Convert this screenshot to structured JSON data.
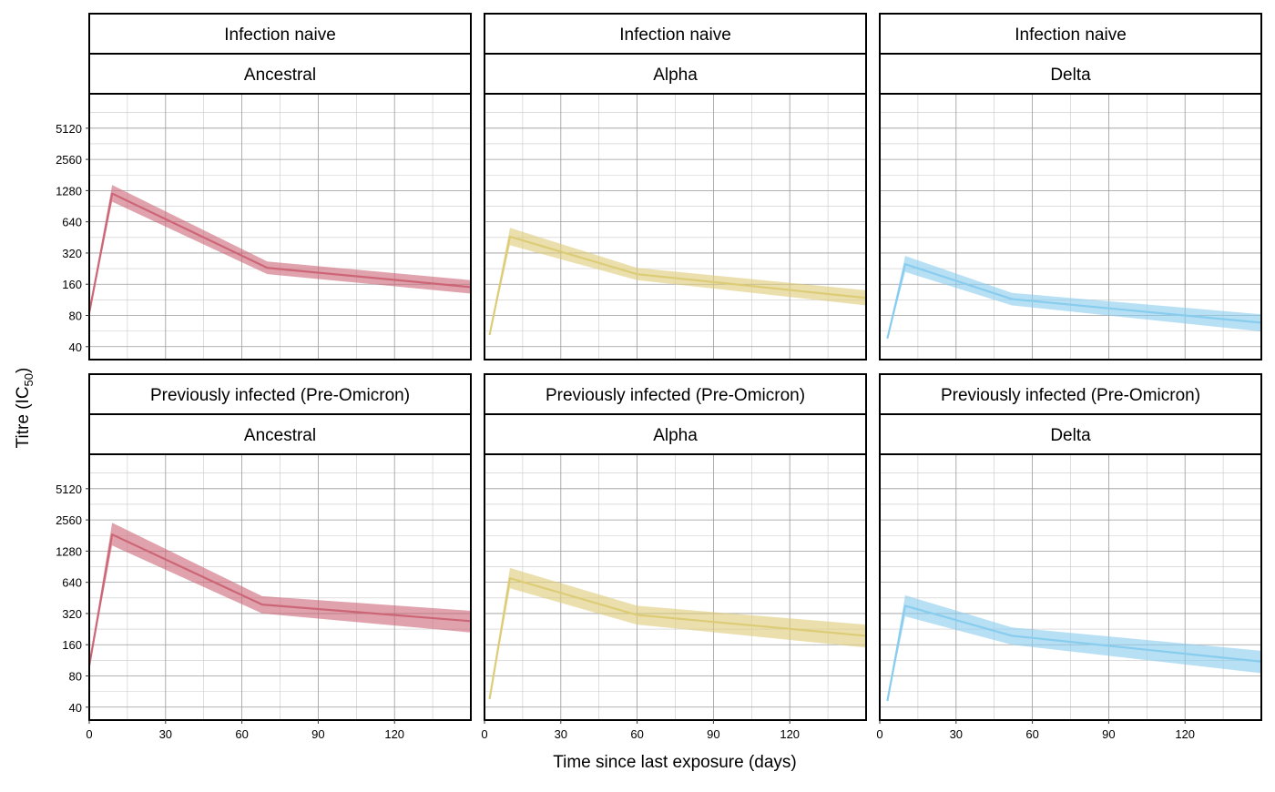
{
  "figure": {
    "xlabel": "Time since last exposure (days)",
    "ylabel_main": "Titre (IC",
    "ylabel_sub": "50",
    "ylabel_close": ")"
  },
  "chart_data": {
    "type": "line",
    "facet_grid": true,
    "rows": [
      "Infection naive",
      "Previously infected (Pre-Omicron)"
    ],
    "columns": [
      "Ancestral",
      "Alpha",
      "Delta"
    ],
    "xlabel": "Time since last exposure (days)",
    "ylabel": "Titre (IC50)",
    "x_ticks": [
      0,
      30,
      60,
      90,
      120
    ],
    "x_range": [
      0,
      150
    ],
    "y_scale": "log2",
    "y_ticks": [
      40,
      80,
      160,
      320,
      640,
      1280,
      2560,
      5120
    ],
    "y_range": [
      30,
      11000
    ],
    "grid": true,
    "legend": "none",
    "colors": {
      "Ancestral": "#CC6677",
      "Alpha": "#DDCC77",
      "Delta": "#88CCEE"
    },
    "panels": [
      {
        "row": "Infection naive",
        "column": "Ancestral",
        "line": [
          [
            0,
            85
          ],
          [
            9,
            1200
          ],
          [
            70,
            230
          ],
          [
            150,
            150
          ]
        ],
        "lower": [
          [
            0,
            80
          ],
          [
            9,
            1000
          ],
          [
            70,
            200
          ],
          [
            150,
            130
          ]
        ],
        "upper": [
          [
            0,
            90
          ],
          [
            9,
            1450
          ],
          [
            70,
            265
          ],
          [
            150,
            175
          ]
        ]
      },
      {
        "row": "Infection naive",
        "column": "Alpha",
        "line": [
          [
            2,
            52
          ],
          [
            10,
            460
          ],
          [
            60,
            200
          ],
          [
            150,
            118
          ]
        ],
        "lower": [
          [
            2,
            50
          ],
          [
            10,
            380
          ],
          [
            60,
            175
          ],
          [
            150,
            100
          ]
        ],
        "upper": [
          [
            2,
            55
          ],
          [
            10,
            560
          ],
          [
            60,
            230
          ],
          [
            150,
            140
          ]
        ]
      },
      {
        "row": "Infection naive",
        "column": "Delta",
        "line": [
          [
            3,
            48
          ],
          [
            10,
            250
          ],
          [
            52,
            115
          ],
          [
            150,
            68
          ]
        ],
        "lower": [
          [
            3,
            46
          ],
          [
            10,
            210
          ],
          [
            52,
            100
          ],
          [
            150,
            56
          ]
        ],
        "upper": [
          [
            3,
            50
          ],
          [
            10,
            300
          ],
          [
            52,
            132
          ],
          [
            150,
            82
          ]
        ]
      },
      {
        "row": "Previously infected (Pre-Omicron)",
        "column": "Ancestral",
        "line": [
          [
            0,
            100
          ],
          [
            9,
            1850
          ],
          [
            68,
            390
          ],
          [
            150,
            270
          ]
        ],
        "lower": [
          [
            0,
            95
          ],
          [
            9,
            1450
          ],
          [
            68,
            320
          ],
          [
            150,
            210
          ]
        ],
        "upper": [
          [
            0,
            105
          ],
          [
            9,
            2400
          ],
          [
            68,
            470
          ],
          [
            150,
            340
          ]
        ]
      },
      {
        "row": "Previously infected (Pre-Omicron)",
        "column": "Alpha",
        "line": [
          [
            2,
            48
          ],
          [
            10,
            700
          ],
          [
            60,
            310
          ],
          [
            150,
            195
          ]
        ],
        "lower": [
          [
            2,
            46
          ],
          [
            10,
            560
          ],
          [
            60,
            250
          ],
          [
            150,
            150
          ]
        ],
        "upper": [
          [
            2,
            50
          ],
          [
            10,
            880
          ],
          [
            60,
            380
          ],
          [
            150,
            250
          ]
        ]
      },
      {
        "row": "Previously infected (Pre-Omicron)",
        "column": "Delta",
        "line": [
          [
            3,
            46
          ],
          [
            10,
            380
          ],
          [
            52,
            195
          ],
          [
            150,
            110
          ]
        ],
        "lower": [
          [
            3,
            44
          ],
          [
            10,
            300
          ],
          [
            52,
            160
          ],
          [
            150,
            85
          ]
        ],
        "upper": [
          [
            3,
            48
          ],
          [
            10,
            480
          ],
          [
            52,
            235
          ],
          [
            150,
            140
          ]
        ]
      }
    ]
  }
}
